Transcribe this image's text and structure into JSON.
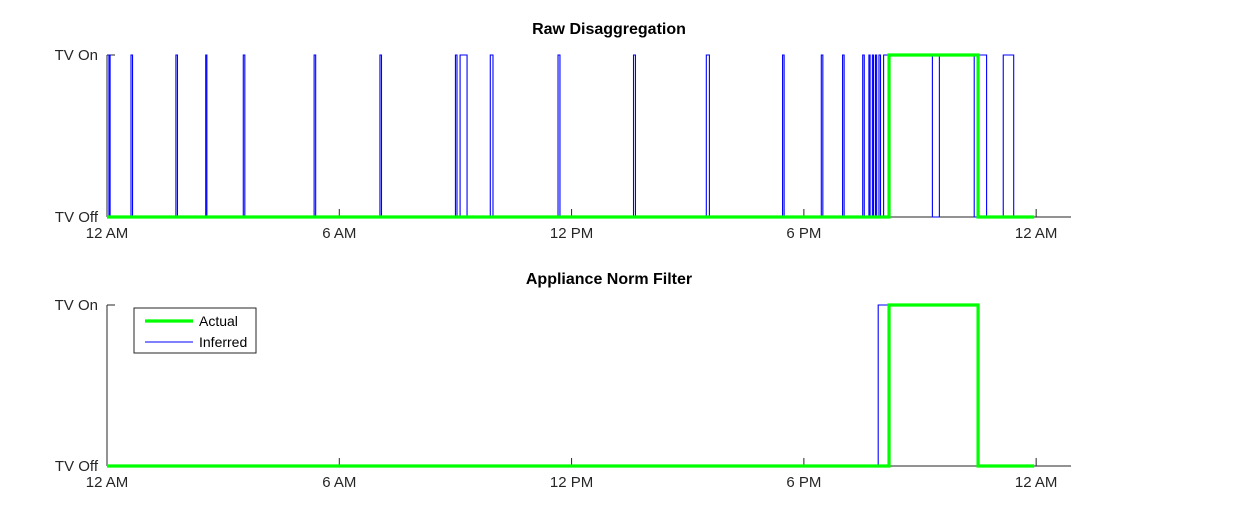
{
  "chart_data": [
    {
      "type": "line",
      "title": "Raw Disaggregation",
      "xlabel": "",
      "ylabel": "",
      "xlim": [
        0,
        24.9
      ],
      "ylim": [
        0,
        1
      ],
      "x_ticks": [
        0,
        6,
        12,
        18,
        24
      ],
      "x_tick_labels": [
        "12 AM",
        "6 AM",
        "12 PM",
        "6 PM",
        "12 AM"
      ],
      "y_ticks": [
        0,
        1
      ],
      "y_tick_labels": [
        "TV Off",
        "TV On"
      ],
      "legend": null,
      "series": [
        {
          "key": "inferred",
          "color": "#0000ff",
          "points": [
            [
              0,
              0
            ],
            [
              0.05,
              0
            ],
            [
              0.05,
              1
            ],
            [
              0.08,
              1
            ],
            [
              0.08,
              0
            ],
            [
              0.62,
              0
            ],
            [
              0.62,
              1
            ],
            [
              0.66,
              1
            ],
            [
              0.66,
              0
            ],
            [
              1.78,
              0
            ],
            [
              1.78,
              1
            ],
            [
              1.82,
              1
            ],
            [
              1.82,
              0
            ],
            [
              2.55,
              0
            ],
            [
              2.55,
              1
            ],
            [
              2.58,
              1
            ],
            [
              2.58,
              0
            ],
            [
              3.52,
              0
            ],
            [
              3.52,
              1
            ],
            [
              3.56,
              1
            ],
            [
              3.56,
              0
            ],
            [
              5.35,
              0
            ],
            [
              5.35,
              1
            ],
            [
              5.39,
              1
            ],
            [
              5.39,
              0
            ],
            [
              7.05,
              0
            ],
            [
              7.05,
              1
            ],
            [
              7.09,
              1
            ],
            [
              7.09,
              0
            ],
            [
              9.0,
              0
            ],
            [
              9.0,
              1
            ],
            [
              9.04,
              1
            ],
            [
              9.04,
              0
            ],
            [
              9.12,
              0
            ],
            [
              9.12,
              1
            ],
            [
              9.3,
              1
            ],
            [
              9.3,
              0
            ],
            [
              9.9,
              0
            ],
            [
              9.9,
              1
            ],
            [
              9.97,
              1
            ],
            [
              9.97,
              0
            ],
            [
              11.65,
              0
            ],
            [
              11.65,
              1
            ],
            [
              11.7,
              1
            ],
            [
              11.7,
              0
            ],
            [
              13.6,
              0
            ],
            [
              13.6,
              1
            ],
            [
              13.65,
              1
            ],
            [
              13.65,
              0
            ],
            [
              15.48,
              0
            ],
            [
              15.48,
              1
            ],
            [
              15.56,
              1
            ],
            [
              15.56,
              0
            ],
            [
              17.45,
              0
            ],
            [
              17.45,
              1
            ],
            [
              17.49,
              1
            ],
            [
              17.49,
              0
            ],
            [
              18.45,
              0
            ],
            [
              18.45,
              1
            ],
            [
              18.49,
              1
            ],
            [
              18.49,
              0
            ],
            [
              19.0,
              0
            ],
            [
              19.0,
              1
            ],
            [
              19.04,
              1
            ],
            [
              19.04,
              0
            ],
            [
              19.52,
              0
            ],
            [
              19.52,
              1
            ],
            [
              19.56,
              1
            ],
            [
              19.56,
              0
            ],
            [
              19.68,
              0
            ],
            [
              19.68,
              1
            ],
            [
              19.71,
              1
            ],
            [
              19.71,
              0
            ],
            [
              19.77,
              0
            ],
            [
              19.77,
              1
            ],
            [
              19.8,
              1
            ],
            [
              19.8,
              0
            ],
            [
              19.85,
              0
            ],
            [
              19.85,
              1
            ],
            [
              19.88,
              1
            ],
            [
              19.88,
              0
            ],
            [
              19.94,
              0
            ],
            [
              19.94,
              1
            ],
            [
              19.98,
              1
            ],
            [
              19.98,
              0
            ],
            [
              20.06,
              0
            ],
            [
              20.06,
              1
            ],
            [
              21.32,
              1
            ],
            [
              21.32,
              0
            ],
            [
              21.5,
              0
            ],
            [
              21.5,
              1
            ],
            [
              22.4,
              1
            ],
            [
              22.4,
              0
            ],
            [
              22.5,
              0
            ],
            [
              22.5,
              1
            ],
            [
              22.72,
              1
            ],
            [
              22.72,
              0
            ],
            [
              23.15,
              0
            ],
            [
              23.15,
              1
            ],
            [
              23.42,
              1
            ],
            [
              23.42,
              0
            ],
            [
              23.95,
              0
            ]
          ]
        },
        {
          "key": "actual",
          "color": "#00ff00",
          "points": [
            [
              0,
              0
            ],
            [
              20.2,
              0
            ],
            [
              20.2,
              1
            ],
            [
              22.5,
              1
            ],
            [
              22.5,
              0
            ],
            [
              23.95,
              0
            ]
          ]
        }
      ]
    },
    {
      "type": "line",
      "title": "Appliance Norm Filter",
      "xlabel": "",
      "ylabel": "",
      "xlim": [
        0,
        24.9
      ],
      "ylim": [
        0,
        1
      ],
      "x_ticks": [
        0,
        6,
        12,
        18,
        24
      ],
      "x_tick_labels": [
        "12 AM",
        "6 AM",
        "12 PM",
        "6 PM",
        "12 AM"
      ],
      "y_ticks": [
        0,
        1
      ],
      "y_tick_labels": [
        "TV Off",
        "TV On"
      ],
      "legend": {
        "position": "top-left",
        "entries": [
          {
            "label": "Actual",
            "key": "actual"
          },
          {
            "label": "Inferred",
            "key": "inferred"
          }
        ]
      },
      "series": [
        {
          "key": "inferred",
          "name": "Inferred",
          "color": "#0000ff",
          "points": [
            [
              0,
              0
            ],
            [
              19.92,
              0
            ],
            [
              19.92,
              1
            ],
            [
              22.5,
              1
            ],
            [
              22.5,
              0
            ],
            [
              23.95,
              0
            ]
          ]
        },
        {
          "key": "actual",
          "name": "Actual",
          "color": "#00ff00",
          "points": [
            [
              0,
              0
            ],
            [
              20.2,
              0
            ],
            [
              20.2,
              1
            ],
            [
              22.5,
              1
            ],
            [
              22.5,
              0
            ],
            [
              23.95,
              0
            ]
          ]
        }
      ]
    }
  ]
}
